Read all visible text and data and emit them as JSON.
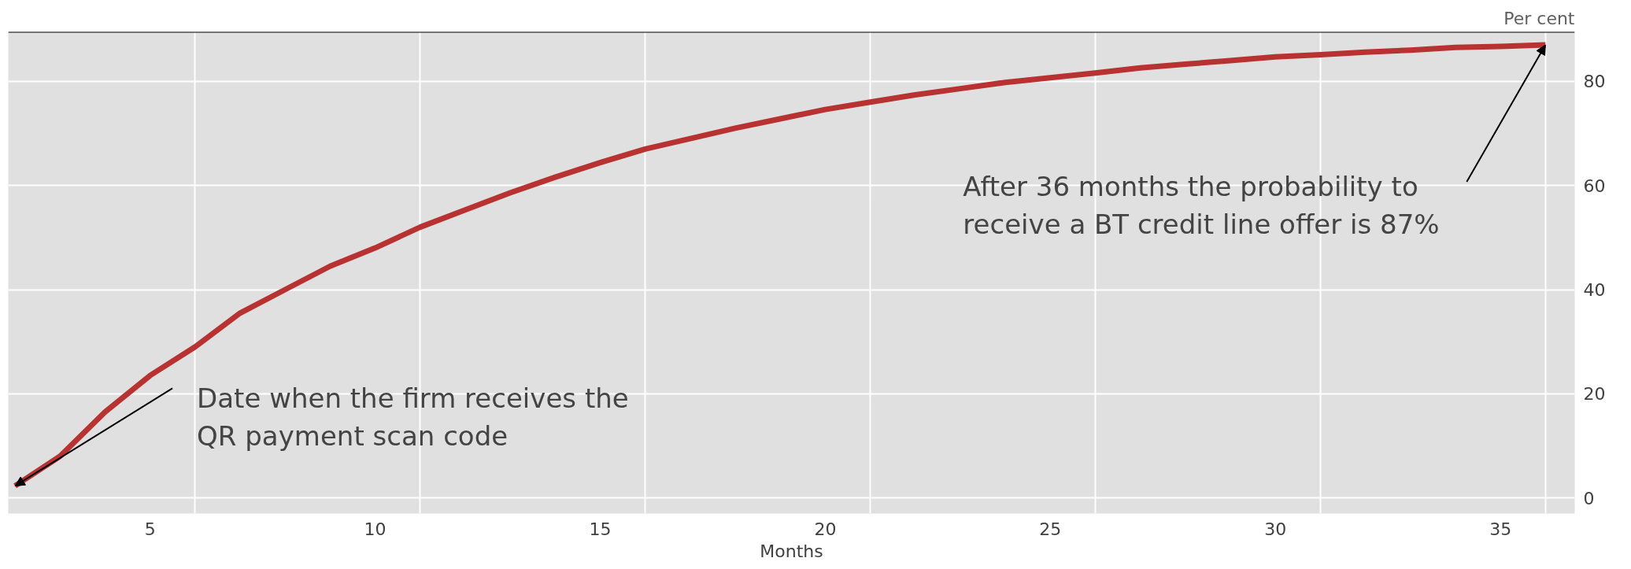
{
  "chart_data": {
    "type": "line",
    "xlabel": "Months",
    "ylabel": "Per cent",
    "x": [
      2,
      3,
      4,
      5,
      6,
      7,
      8,
      9,
      10,
      11,
      12,
      13,
      14,
      15,
      16,
      17,
      18,
      19,
      20,
      21,
      22,
      23,
      24,
      25,
      26,
      27,
      28,
      29,
      30,
      31,
      32,
      33,
      34,
      35,
      36
    ],
    "series": [
      {
        "color": "#b83232",
        "values": [
          2.3,
          8,
          16.5,
          23.5,
          29,
          35.5,
          40,
          44.5,
          48,
          52,
          55.3,
          58.6,
          61.6,
          64.4,
          67,
          69,
          71,
          72.8,
          74.6,
          76,
          77.4,
          78.6,
          79.8,
          80.7,
          81.6,
          82.6,
          83.3,
          84,
          84.7,
          85.1,
          85.6,
          86,
          86.5,
          86.7,
          87
        ]
      }
    ],
    "xlim": [
      1.85,
      36.65
    ],
    "ylim": [
      -3,
      89.5
    ],
    "xticks": [
      5,
      10,
      15,
      20,
      25,
      30,
      35,
      {
        "value": 6,
        "label": null
      },
      {
        "value": 11,
        "label": null
      },
      {
        "value": 16,
        "label": null
      },
      {
        "value": 21,
        "label": null
      },
      {
        "value": 26,
        "label": null
      },
      {
        "value": 31,
        "label": null
      },
      {
        "value": 36,
        "label": null
      }
    ],
    "yticks": [
      0,
      20,
      40,
      60,
      80
    ],
    "grid": true,
    "marker": "none",
    "line_style": "solid",
    "annotations": [
      {
        "text": "Date when the firm receives the\nQR payment scan code",
        "x": 2,
        "y": 2.3
      },
      {
        "text": "After 36 months the probability to\nreceive a BT credit line offer is 87%",
        "x": 36,
        "y": 87
      }
    ]
  }
}
